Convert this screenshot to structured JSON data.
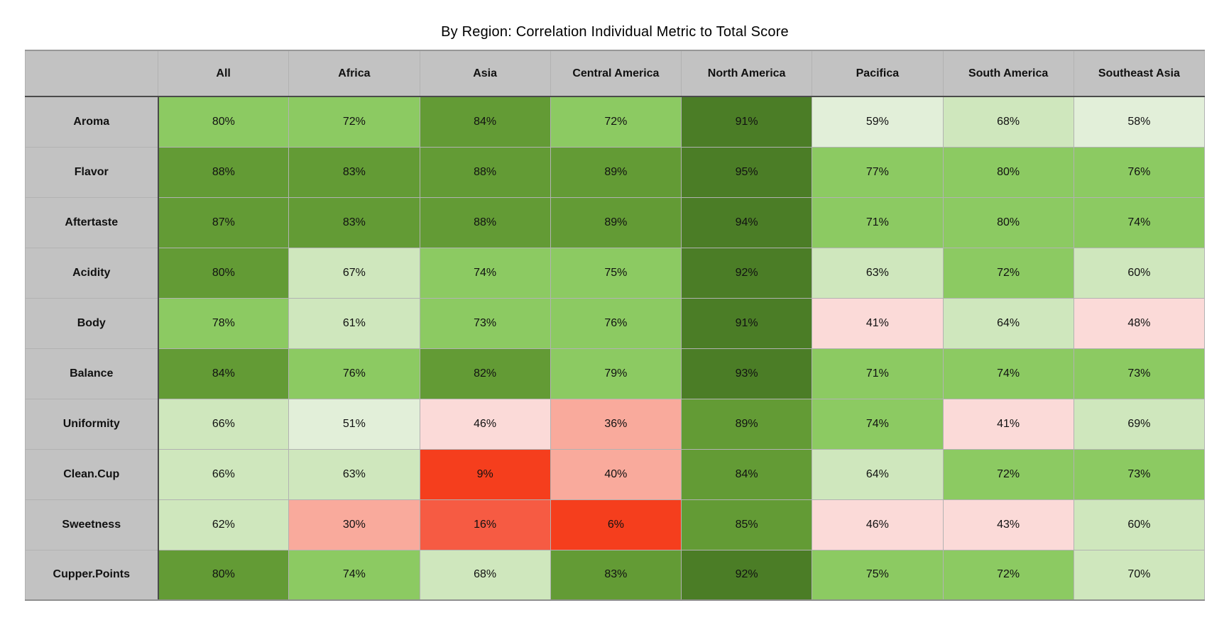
{
  "title": "By Region: Correlation Individual Metric to Total Score",
  "chart_data": {
    "type": "heatmap",
    "title": "By Region: Correlation Individual Metric to Total Score",
    "unit": "%",
    "columns": [
      "All",
      "Africa",
      "Asia",
      "Central America",
      "North America",
      "Pacifica",
      "South America",
      "Southeast Asia"
    ],
    "rows": [
      "Aroma",
      "Flavor",
      "Aftertaste",
      "Acidity",
      "Body",
      "Balance",
      "Uniformity",
      "Clean.Cup",
      "Sweetness",
      "Cupper.Points"
    ],
    "values": [
      [
        80,
        72,
        84,
        72,
        91,
        59,
        68,
        58
      ],
      [
        88,
        83,
        88,
        89,
        95,
        77,
        80,
        76
      ],
      [
        87,
        83,
        88,
        89,
        94,
        71,
        80,
        74
      ],
      [
        80,
        67,
        74,
        75,
        92,
        63,
        72,
        60
      ],
      [
        78,
        61,
        73,
        76,
        91,
        41,
        64,
        48
      ],
      [
        84,
        76,
        82,
        79,
        93,
        71,
        74,
        73
      ],
      [
        66,
        51,
        46,
        36,
        89,
        74,
        41,
        69
      ],
      [
        66,
        63,
        9,
        40,
        84,
        64,
        72,
        73
      ],
      [
        62,
        30,
        16,
        6,
        85,
        46,
        43,
        60
      ],
      [
        80,
        74,
        68,
        83,
        92,
        75,
        72,
        70
      ]
    ],
    "cell_colors": [
      [
        "#8cca62",
        "#8cca62",
        "#639b35",
        "#8cca62",
        "#4b7d26",
        "#e2efd9",
        "#cfe7bd",
        "#e2efd9"
      ],
      [
        "#639b35",
        "#639b35",
        "#639b35",
        "#639b35",
        "#4b7d26",
        "#8cca62",
        "#8cca62",
        "#8cca62"
      ],
      [
        "#639b35",
        "#639b35",
        "#639b35",
        "#639b35",
        "#4b7d26",
        "#8cca62",
        "#8cca62",
        "#8cca62"
      ],
      [
        "#639b35",
        "#cfe7bd",
        "#8cca62",
        "#8cca62",
        "#4b7d26",
        "#cfe7bd",
        "#8cca62",
        "#cfe7bd"
      ],
      [
        "#8cca62",
        "#cfe7bd",
        "#8cca62",
        "#8cca62",
        "#4b7d26",
        "#fbdad8",
        "#cfe7bd",
        "#fbdad8"
      ],
      [
        "#639b35",
        "#8cca62",
        "#639b35",
        "#8cca62",
        "#4b7d26",
        "#8cca62",
        "#8cca62",
        "#8cca62"
      ],
      [
        "#cfe7bd",
        "#e2efd9",
        "#fbdad8",
        "#f9aa9c",
        "#639b35",
        "#8cca62",
        "#fbdad8",
        "#cfe7bd"
      ],
      [
        "#cfe7bd",
        "#cfe7bd",
        "#f53e1d",
        "#f9aa9c",
        "#639b35",
        "#cfe7bd",
        "#8cca62",
        "#8cca62"
      ],
      [
        "#cfe7bd",
        "#f9aa9c",
        "#f65b43",
        "#f53e1d",
        "#639b35",
        "#fbdad8",
        "#fbdad8",
        "#cfe7bd"
      ],
      [
        "#639b35",
        "#8cca62",
        "#cfe7bd",
        "#639b35",
        "#4b7d26",
        "#8cca62",
        "#8cca62",
        "#cfe7bd"
      ]
    ],
    "palette": {
      "darkest_green_90_plus": "#4b7d26",
      "dark_green_80s": "#639b35",
      "medium_green_70s": "#8cca62",
      "pale_green_60s": "#cfe7bd",
      "very_pale_green_50s": "#e2efd9",
      "pale_pink_40s": "#fbdad8",
      "salmon_30s": "#f9aa9c",
      "red_10s": "#f65b43",
      "bright_red_0s": "#f53e1d"
    },
    "header_bg": "#c2c2c2",
    "legend_position": "none",
    "grid": true
  }
}
